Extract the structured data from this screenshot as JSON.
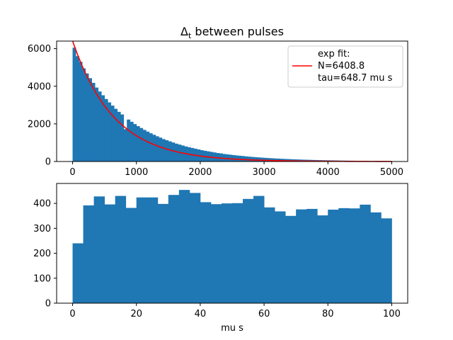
{
  "chart_data": [
    {
      "type": "bar",
      "title_main": "Δ",
      "title_sub": "t",
      "title_rest": " between pulses",
      "xlabel": "",
      "ylabel": "",
      "xlim": [
        -250,
        5250
      ],
      "ylim": [
        0,
        6400
      ],
      "xticks": [
        0,
        1000,
        2000,
        3000,
        4000,
        5000
      ],
      "yticks": [
        0,
        2000,
        4000,
        6000
      ],
      "bin_width": 50,
      "bin_start": 0,
      "hist_color": "#1f77b4",
      "fit_color": "#ff0000",
      "fit": {
        "N": 6408.8,
        "tau": 648.7,
        "x_start": 0,
        "x_end": 5000
      },
      "legend": {
        "placement": "upper-right",
        "line1": "exp fit:",
        "line2": "N=6408.8",
        "line3": "tau=648.7 mu s"
      },
      "values": [
        6050,
        5600,
        5300,
        4950,
        4680,
        4430,
        4180,
        3930,
        3720,
        3520,
        3320,
        3140,
        2970,
        2800,
        2640,
        2500,
        1720,
        2230,
        2110,
        1990,
        1880,
        1780,
        1680,
        1590,
        1500,
        1420,
        1340,
        1270,
        1190,
        1130,
        1070,
        1010,
        950,
        900,
        850,
        800,
        760,
        720,
        680,
        640,
        600,
        570,
        540,
        510,
        480,
        450,
        430,
        400,
        380,
        360,
        340,
        320,
        305,
        290,
        270,
        256,
        242,
        228,
        215,
        204,
        192,
        182,
        172,
        162,
        154,
        145,
        137,
        129,
        122,
        116,
        109,
        103,
        97,
        92,
        87,
        82,
        78,
        73,
        69,
        65,
        62,
        58,
        55,
        52,
        49,
        47,
        44,
        42,
        39,
        37,
        35,
        33,
        31,
        30,
        28,
        26,
        25,
        24,
        22,
        21
      ]
    },
    {
      "type": "bar",
      "title": "",
      "xlabel": "mu s",
      "ylabel": "",
      "xlim": [
        -5,
        105
      ],
      "ylim": [
        0,
        480
      ],
      "xticks": [
        0,
        20,
        40,
        60,
        80,
        100
      ],
      "yticks": [
        0,
        100,
        200,
        300,
        400
      ],
      "bin_width": 3.333,
      "bin_start": 0,
      "hist_color": "#1f77b4",
      "values": [
        240,
        392,
        428,
        396,
        430,
        382,
        424,
        424,
        398,
        434,
        454,
        442,
        405,
        397,
        400,
        401,
        418,
        430,
        384,
        368,
        350,
        376,
        378,
        352,
        375,
        381,
        380,
        395,
        364,
        340
      ]
    }
  ]
}
